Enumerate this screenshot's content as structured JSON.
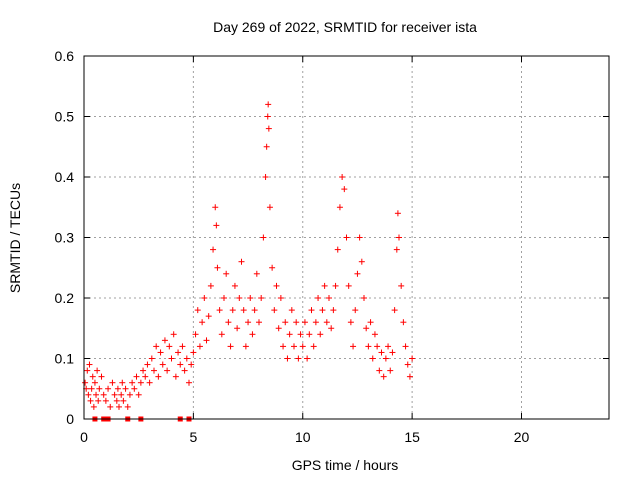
{
  "chart_data": {
    "type": "scatter",
    "title": "Day 269 of 2022, SRMTID for receiver ista",
    "xlabel": "GPS time / hours",
    "ylabel": "SRMTID / TECUs",
    "xlim": [
      0,
      24
    ],
    "ylim": [
      0,
      0.6
    ],
    "xticks": [
      0,
      5,
      10,
      15,
      20
    ],
    "xtick_labels": [
      "0",
      "5",
      "10",
      "15",
      "20"
    ],
    "yticks": [
      0,
      0.1,
      0.2,
      0.3,
      0.4,
      0.5,
      0.6
    ],
    "ytick_labels": [
      "0",
      "0.1",
      "0.2",
      "0.3",
      "0.4",
      "0.5",
      "0.6"
    ],
    "grid": true,
    "marker": "+",
    "color": "#ff0000",
    "series": [
      {
        "name": "SRMTID",
        "points": [
          [
            0.05,
            0.06
          ],
          [
            0.1,
            0.05
          ],
          [
            0.15,
            0.08
          ],
          [
            0.2,
            0.04
          ],
          [
            0.25,
            0.09
          ],
          [
            0.3,
            0.03
          ],
          [
            0.35,
            0.05
          ],
          [
            0.4,
            0.07
          ],
          [
            0.45,
            0.02
          ],
          [
            0.5,
            0.06
          ],
          [
            0.55,
            0.04
          ],
          [
            0.6,
            0.08
          ],
          [
            0.65,
            0.03
          ],
          [
            0.7,
            0.05
          ],
          [
            0.8,
            0.07
          ],
          [
            0.9,
            0.04
          ],
          [
            1.0,
            0.03
          ],
          [
            1.1,
            0.05
          ],
          [
            1.2,
            0.02
          ],
          [
            1.3,
            0.06
          ],
          [
            1.4,
            0.04
          ],
          [
            1.5,
            0.03
          ],
          [
            1.55,
            0.05
          ],
          [
            1.6,
            0.02
          ],
          [
            1.7,
            0.04
          ],
          [
            1.75,
            0.06
          ],
          [
            1.8,
            0.03
          ],
          [
            1.9,
            0.05
          ],
          [
            2.0,
            0.02
          ],
          [
            2.1,
            0.04
          ],
          [
            2.2,
            0.06
          ],
          [
            2.3,
            0.05
          ],
          [
            2.4,
            0.07
          ],
          [
            2.5,
            0.04
          ],
          [
            2.6,
            0.06
          ],
          [
            2.7,
            0.08
          ],
          [
            2.8,
            0.07
          ],
          [
            2.9,
            0.09
          ],
          [
            3.0,
            0.06
          ],
          [
            3.1,
            0.1
          ],
          [
            3.2,
            0.08
          ],
          [
            3.3,
            0.12
          ],
          [
            3.4,
            0.07
          ],
          [
            3.5,
            0.11
          ],
          [
            3.6,
            0.09
          ],
          [
            3.7,
            0.13
          ],
          [
            3.8,
            0.08
          ],
          [
            3.9,
            0.12
          ],
          [
            4.0,
            0.1
          ],
          [
            4.1,
            0.14
          ],
          [
            4.2,
            0.07
          ],
          [
            4.3,
            0.11
          ],
          [
            4.4,
            0.09
          ],
          [
            4.5,
            0.12
          ],
          [
            4.6,
            0.08
          ],
          [
            4.7,
            0.1
          ],
          [
            4.8,
            0.06
          ],
          [
            4.9,
            0.09
          ],
          [
            5.0,
            0.11
          ],
          [
            5.1,
            0.14
          ],
          [
            5.2,
            0.18
          ],
          [
            5.3,
            0.12
          ],
          [
            5.4,
            0.16
          ],
          [
            5.5,
            0.2
          ],
          [
            5.6,
            0.13
          ],
          [
            5.7,
            0.17
          ],
          [
            5.8,
            0.22
          ],
          [
            5.9,
            0.28
          ],
          [
            6.0,
            0.35
          ],
          [
            6.05,
            0.32
          ],
          [
            6.1,
            0.25
          ],
          [
            6.2,
            0.18
          ],
          [
            6.3,
            0.14
          ],
          [
            6.4,
            0.2
          ],
          [
            6.5,
            0.24
          ],
          [
            6.6,
            0.16
          ],
          [
            6.7,
            0.12
          ],
          [
            6.8,
            0.18
          ],
          [
            6.9,
            0.22
          ],
          [
            7.0,
            0.15
          ],
          [
            7.1,
            0.2
          ],
          [
            7.2,
            0.26
          ],
          [
            7.3,
            0.18
          ],
          [
            7.4,
            0.12
          ],
          [
            7.5,
            0.16
          ],
          [
            7.6,
            0.2
          ],
          [
            7.7,
            0.14
          ],
          [
            7.8,
            0.18
          ],
          [
            7.9,
            0.24
          ],
          [
            8.0,
            0.16
          ],
          [
            8.1,
            0.2
          ],
          [
            8.2,
            0.3
          ],
          [
            8.3,
            0.4
          ],
          [
            8.35,
            0.45
          ],
          [
            8.4,
            0.5
          ],
          [
            8.42,
            0.52
          ],
          [
            8.45,
            0.48
          ],
          [
            8.5,
            0.35
          ],
          [
            8.6,
            0.25
          ],
          [
            8.7,
            0.18
          ],
          [
            8.8,
            0.22
          ],
          [
            8.9,
            0.15
          ],
          [
            9.0,
            0.2
          ],
          [
            9.1,
            0.12
          ],
          [
            9.2,
            0.16
          ],
          [
            9.3,
            0.1
          ],
          [
            9.4,
            0.14
          ],
          [
            9.5,
            0.18
          ],
          [
            9.6,
            0.12
          ],
          [
            9.7,
            0.16
          ],
          [
            9.8,
            0.1
          ],
          [
            9.9,
            0.14
          ],
          [
            10.0,
            0.12
          ],
          [
            10.1,
            0.16
          ],
          [
            10.2,
            0.1
          ],
          [
            10.3,
            0.14
          ],
          [
            10.4,
            0.18
          ],
          [
            10.5,
            0.12
          ],
          [
            10.6,
            0.16
          ],
          [
            10.7,
            0.2
          ],
          [
            10.8,
            0.14
          ],
          [
            10.9,
            0.18
          ],
          [
            11.0,
            0.22
          ],
          [
            11.1,
            0.16
          ],
          [
            11.2,
            0.2
          ],
          [
            11.3,
            0.15
          ],
          [
            11.4,
            0.18
          ],
          [
            11.5,
            0.22
          ],
          [
            11.6,
            0.28
          ],
          [
            11.7,
            0.35
          ],
          [
            11.8,
            0.4
          ],
          [
            11.9,
            0.38
          ],
          [
            12.0,
            0.3
          ],
          [
            12.1,
            0.22
          ],
          [
            12.2,
            0.16
          ],
          [
            12.3,
            0.12
          ],
          [
            12.4,
            0.18
          ],
          [
            12.5,
            0.24
          ],
          [
            12.6,
            0.3
          ],
          [
            12.7,
            0.26
          ],
          [
            12.8,
            0.2
          ],
          [
            12.9,
            0.15
          ],
          [
            13.0,
            0.12
          ],
          [
            13.1,
            0.16
          ],
          [
            13.2,
            0.1
          ],
          [
            13.3,
            0.14
          ],
          [
            13.4,
            0.12
          ],
          [
            13.5,
            0.08
          ],
          [
            13.6,
            0.11
          ],
          [
            13.7,
            0.07
          ],
          [
            13.8,
            0.1
          ],
          [
            13.9,
            0.12
          ],
          [
            14.0,
            0.08
          ],
          [
            14.1,
            0.11
          ],
          [
            14.2,
            0.18
          ],
          [
            14.3,
            0.28
          ],
          [
            14.35,
            0.34
          ],
          [
            14.4,
            0.3
          ],
          [
            14.5,
            0.22
          ],
          [
            14.6,
            0.16
          ],
          [
            14.7,
            0.12
          ],
          [
            14.8,
            0.09
          ],
          [
            14.9,
            0.07
          ],
          [
            15.0,
            0.1
          ]
        ]
      }
    ],
    "zero_markers_x": [
      0.5,
      0.9,
      1.1,
      2.0,
      2.6,
      4.4,
      4.8
    ]
  }
}
